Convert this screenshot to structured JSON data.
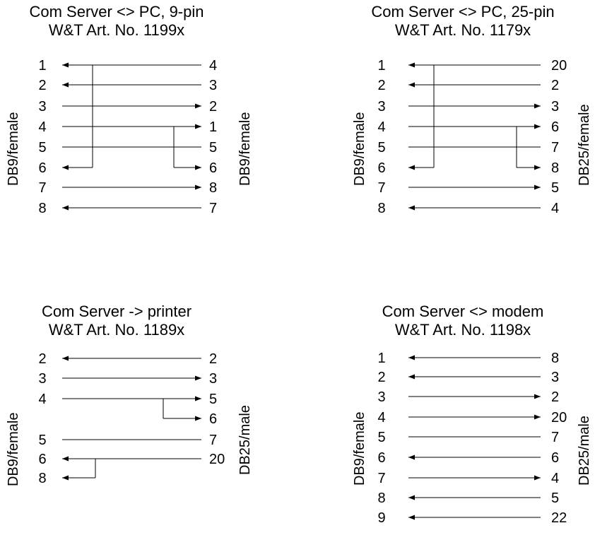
{
  "diagrams": [
    {
      "title": "Com Server <> PC, 9-pin",
      "subtitle": "W&T Art. No. 1199x",
      "left_connector": "DB9/female",
      "right_connector": "DB9/female",
      "wires": [
        {
          "left": "1",
          "right": "4",
          "dir": "left"
        },
        {
          "left": "2",
          "right": "3",
          "dir": "left"
        },
        {
          "left": "3",
          "right": "2",
          "dir": "right"
        },
        {
          "left": "4",
          "right": "1",
          "dir": "right"
        },
        {
          "left": "5",
          "right": "5",
          "dir": "none"
        },
        {
          "left": "6",
          "right": "6",
          "dir": "both"
        },
        {
          "left": "7",
          "right": "8",
          "dir": "right"
        },
        {
          "left": "8",
          "right": "7",
          "dir": "left"
        }
      ],
      "jumpers": [
        {
          "from": 0,
          "to": 5,
          "side": "left",
          "arrow_end": 5
        },
        {
          "from": 3,
          "to": 5,
          "side": "right",
          "arrow_end": 5
        }
      ]
    },
    {
      "title": "Com Server <> PC, 25-pin",
      "subtitle": "W&T Art. No. 1179x",
      "left_connector": "DB9/female",
      "right_connector": "DB25/female",
      "wires": [
        {
          "left": "1",
          "right": "20",
          "dir": "left"
        },
        {
          "left": "2",
          "right": "2",
          "dir": "left"
        },
        {
          "left": "3",
          "right": "3",
          "dir": "right"
        },
        {
          "left": "4",
          "right": "6",
          "dir": "right"
        },
        {
          "left": "5",
          "right": "7",
          "dir": "none"
        },
        {
          "left": "6",
          "right": "8",
          "dir": "both"
        },
        {
          "left": "7",
          "right": "5",
          "dir": "right"
        },
        {
          "left": "8",
          "right": "4",
          "dir": "left"
        }
      ],
      "jumpers": [
        {
          "from": 0,
          "to": 5,
          "side": "left",
          "arrow_end": 5
        },
        {
          "from": 3,
          "to": 5,
          "side": "right",
          "arrow_end": 5
        }
      ]
    },
    {
      "title": "Com Server -> printer",
      "subtitle": "W&T Art. No. 1189x",
      "left_connector": "DB9/female",
      "right_connector": "DB25/male",
      "wires": [
        {
          "left": "2",
          "right": "2",
          "dir": "left"
        },
        {
          "left": "3",
          "right": "3",
          "dir": "right"
        },
        {
          "left": "4",
          "right": "5",
          "dir": "right"
        },
        {
          "left": "",
          "right": "6",
          "dir": "right_stub"
        },
        {
          "left": "5",
          "right": "7",
          "dir": "none"
        },
        {
          "left": "6",
          "right": "20",
          "dir": "left"
        },
        {
          "left": "8",
          "right": "",
          "dir": "left_stub"
        }
      ],
      "jumpers": [
        {
          "from": 2,
          "to": 3,
          "side": "right",
          "arrow_end": -1
        },
        {
          "from": 5,
          "to": 6,
          "side": "left",
          "arrow_end": -1
        }
      ]
    },
    {
      "title": "Com Server <> modem",
      "subtitle": "W&T Art. No. 1198x",
      "left_connector": "DB9/female",
      "right_connector": "DB25/male",
      "wires": [
        {
          "left": "1",
          "right": "8",
          "dir": "left"
        },
        {
          "left": "2",
          "right": "3",
          "dir": "left"
        },
        {
          "left": "3",
          "right": "2",
          "dir": "right"
        },
        {
          "left": "4",
          "right": "20",
          "dir": "right"
        },
        {
          "left": "5",
          "right": "7",
          "dir": "none"
        },
        {
          "left": "6",
          "right": "6",
          "dir": "left"
        },
        {
          "left": "7",
          "right": "4",
          "dir": "right"
        },
        {
          "left": "8",
          "right": "5",
          "dir": "left"
        },
        {
          "left": "9",
          "right": "22",
          "dir": "left"
        }
      ],
      "jumpers": []
    }
  ]
}
